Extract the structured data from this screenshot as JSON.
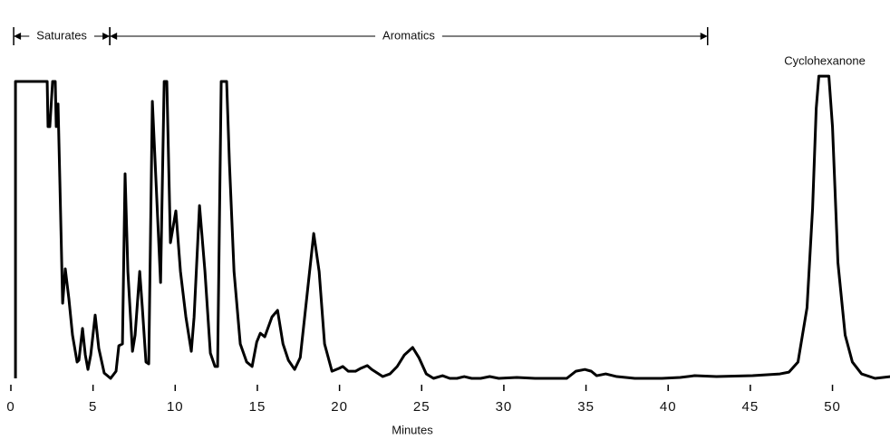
{
  "chart_data": {
    "type": "line",
    "x_label": "Minutes",
    "peak_label": "Cyclohexanone",
    "annotations": [
      {
        "text": "Saturates",
        "xrange": [
          0.17,
          6.02
        ]
      },
      {
        "text": "Aromatics",
        "xrange": [
          6.02,
          42.4
        ]
      }
    ],
    "xlim": [
      0,
      53.5
    ],
    "xticks": [
      0,
      5,
      10,
      15,
      20,
      25,
      30,
      35,
      40,
      45,
      50
    ],
    "ylim": [
      0,
      105
    ],
    "color": "#000000",
    "x": [
      0.28,
      0.28,
      2.21,
      2.26,
      2.37,
      2.54,
      2.7,
      2.76,
      2.87,
      2.98,
      3.15,
      3.31,
      3.53,
      3.75,
      4.03,
      4.14,
      4.36,
      4.53,
      4.69,
      4.86,
      5.13,
      5.35,
      5.68,
      6.07,
      6.4,
      6.57,
      6.79,
      6.95,
      7.12,
      7.4,
      7.56,
      7.84,
      8.0,
      8.22,
      8.39,
      8.61,
      8.83,
      9.11,
      9.33,
      9.49,
      9.71,
      10.04,
      10.32,
      10.65,
      10.98,
      11.15,
      11.48,
      11.81,
      12.14,
      12.42,
      12.58,
      12.8,
      13.13,
      13.3,
      13.58,
      13.96,
      14.35,
      14.68,
      14.96,
      15.18,
      15.45,
      15.89,
      16.23,
      16.56,
      16.89,
      17.27,
      17.61,
      17.94,
      18.43,
      18.76,
      19.09,
      19.54,
      19.98,
      20.2,
      20.53,
      20.97,
      21.3,
      21.69,
      21.96,
      22.3,
      22.63,
      23.07,
      23.51,
      23.95,
      24.45,
      24.83,
      25.28,
      25.72,
      26.27,
      26.71,
      27.15,
      27.59,
      28.04,
      28.59,
      29.14,
      29.69,
      30.79,
      31.9,
      33.0,
      33.83,
      34.38,
      34.93,
      35.32,
      35.65,
      36.2,
      36.87,
      37.97,
      39.62,
      40.73,
      41.61,
      42.94,
      45.14,
      46.8,
      47.35,
      47.9,
      48.45,
      48.79,
      49.01,
      49.17,
      49.78,
      50.0,
      50.33,
      50.77,
      51.21,
      51.77,
      52.59,
      53.53
    ],
    "values": [
      0,
      100,
      100,
      84.8,
      84.8,
      100,
      100,
      84.8,
      92.4,
      66.5,
      25.3,
      36.9,
      26.8,
      14.6,
      5.5,
      6.1,
      16.8,
      7.9,
      3.0,
      7.9,
      21.3,
      10.1,
      1.8,
      0,
      2.4,
      11.0,
      11.6,
      68.9,
      36.0,
      9.1,
      14.6,
      36.0,
      23.8,
      5.5,
      4.9,
      93.3,
      66.5,
      32.3,
      100,
      100,
      45.7,
      56.4,
      36.0,
      20.7,
      9.1,
      20.7,
      58.2,
      36.0,
      8.5,
      4.0,
      4.0,
      100,
      100,
      72.6,
      36.0,
      11.6,
      5.5,
      4.0,
      12.2,
      15.2,
      14.0,
      20.7,
      22.9,
      11.6,
      6.1,
      3.0,
      7.0,
      23.8,
      48.8,
      36.0,
      11.6,
      2.4,
      3.4,
      4.0,
      2.4,
      2.4,
      3.4,
      4.3,
      3.0,
      1.8,
      0.6,
      1.5,
      4.0,
      7.9,
      10.4,
      7.0,
      1.5,
      0,
      0.9,
      0,
      0,
      0.6,
      0,
      0,
      0.6,
      0,
      0.3,
      0,
      0,
      0,
      2.4,
      3.0,
      2.4,
      0.9,
      1.5,
      0.6,
      0,
      0,
      0.3,
      0.9,
      0.6,
      0.9,
      1.5,
      2.1,
      5.5,
      23.8,
      57.3,
      90.9,
      101.8,
      101.8,
      84.8,
      39.0,
      14.6,
      5.5,
      1.5,
      0,
      0.6
    ]
  }
}
